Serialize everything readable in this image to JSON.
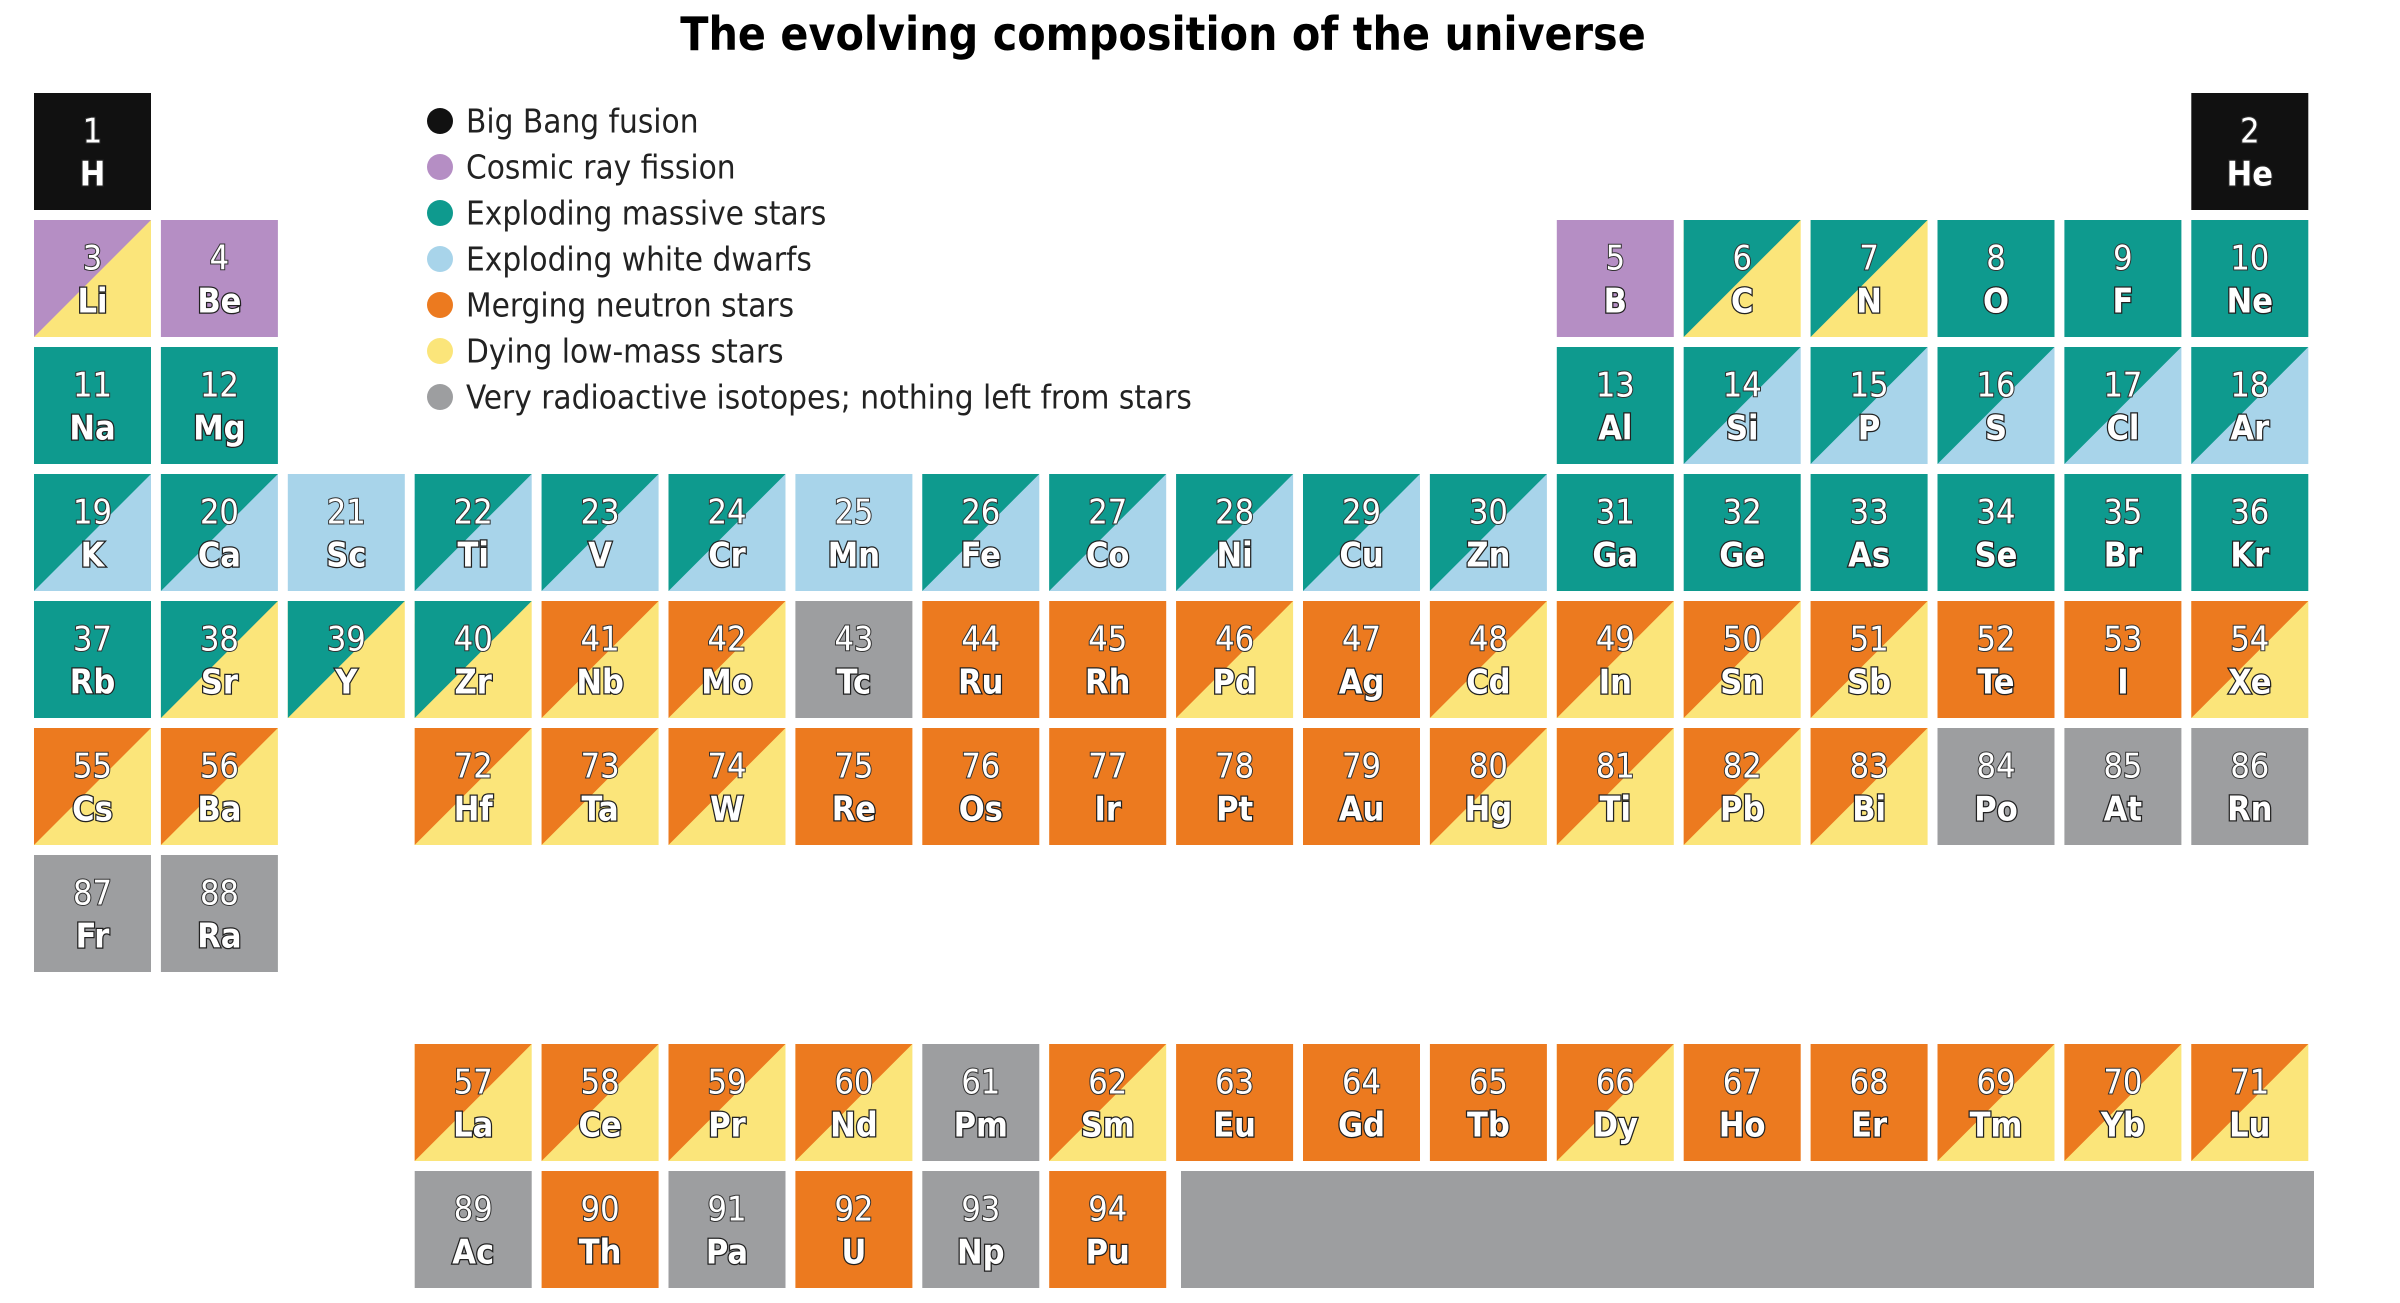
{
  "title": "The evolving composition of the universe",
  "legend": [
    {
      "label": "Big Bang fusion",
      "color": "#111111"
    },
    {
      "label": "Cosmic ray fission",
      "color": "#b58ec4"
    },
    {
      "label": "Exploding massive stars",
      "color": "#0e9a8e"
    },
    {
      "label": "Exploding white dwarfs",
      "color": "#a8d4ea"
    },
    {
      "label": "Merging neutron stars",
      "color": "#ec7a1f"
    },
    {
      "label": "Dying low-mass stars",
      "color": "#fbe57a"
    },
    {
      "label": "Very  radioactive isotopes; nothing left from stars",
      "color": "#9d9ea0"
    }
  ],
  "elements": [
    {
      "number": 1,
      "symbol": "H",
      "colors": [
        "#111111"
      ]
    },
    {
      "number": 2,
      "symbol": "He",
      "colors": [
        "#111111"
      ]
    },
    {
      "number": 3,
      "symbol": "Li",
      "colors": [
        "#b58ec4",
        "#fbe57a"
      ]
    },
    {
      "number": 4,
      "symbol": "Be",
      "colors": [
        "#b58ec4"
      ]
    },
    {
      "number": 5,
      "symbol": "B",
      "colors": [
        "#b58ec4"
      ]
    },
    {
      "number": 6,
      "symbol": "C",
      "colors": [
        "#0e9a8e",
        "#fbe57a"
      ]
    },
    {
      "number": 7,
      "symbol": "N",
      "colors": [
        "#0e9a8e",
        "#fbe57a"
      ]
    },
    {
      "number": 8,
      "symbol": "O",
      "colors": [
        "#0e9a8e"
      ]
    },
    {
      "number": 9,
      "symbol": "F",
      "colors": [
        "#0e9a8e"
      ]
    },
    {
      "number": 10,
      "symbol": "Ne",
      "colors": [
        "#0e9a8e"
      ]
    },
    {
      "number": 11,
      "symbol": "Na",
      "colors": [
        "#0e9a8e"
      ]
    },
    {
      "number": 12,
      "symbol": "Mg",
      "colors": [
        "#0e9a8e"
      ]
    },
    {
      "number": 13,
      "symbol": "Al",
      "colors": [
        "#0e9a8e"
      ]
    },
    {
      "number": 14,
      "symbol": "Si",
      "colors": [
        "#0e9a8e",
        "#a8d4ea"
      ]
    },
    {
      "number": 15,
      "symbol": "P",
      "colors": [
        "#0e9a8e",
        "#a8d4ea"
      ]
    },
    {
      "number": 16,
      "symbol": "S",
      "colors": [
        "#0e9a8e",
        "#a8d4ea"
      ]
    },
    {
      "number": 17,
      "symbol": "Cl",
      "colors": [
        "#0e9a8e",
        "#a8d4ea"
      ]
    },
    {
      "number": 18,
      "symbol": "Ar",
      "colors": [
        "#0e9a8e",
        "#a8d4ea"
      ]
    },
    {
      "number": 19,
      "symbol": "K",
      "colors": [
        "#0e9a8e",
        "#a8d4ea"
      ]
    },
    {
      "number": 20,
      "symbol": "Ca",
      "colors": [
        "#0e9a8e",
        "#a8d4ea"
      ]
    },
    {
      "number": 21,
      "symbol": "Sc",
      "colors": [
        "#a8d4ea"
      ]
    },
    {
      "number": 22,
      "symbol": "Ti",
      "colors": [
        "#0e9a8e",
        "#a8d4ea"
      ]
    },
    {
      "number": 23,
      "symbol": "V",
      "colors": [
        "#0e9a8e",
        "#a8d4ea"
      ]
    },
    {
      "number": 24,
      "symbol": "Cr",
      "colors": [
        "#0e9a8e",
        "#a8d4ea"
      ]
    },
    {
      "number": 25,
      "symbol": "Mn",
      "colors": [
        "#a8d4ea"
      ]
    },
    {
      "number": 26,
      "symbol": "Fe",
      "colors": [
        "#0e9a8e",
        "#a8d4ea"
      ]
    },
    {
      "number": 27,
      "symbol": "Co",
      "colors": [
        "#0e9a8e",
        "#a8d4ea"
      ]
    },
    {
      "number": 28,
      "symbol": "Ni",
      "colors": [
        "#0e9a8e",
        "#a8d4ea"
      ]
    },
    {
      "number": 29,
      "symbol": "Cu",
      "colors": [
        "#0e9a8e",
        "#a8d4ea"
      ]
    },
    {
      "number": 30,
      "symbol": "Zn",
      "colors": [
        "#0e9a8e",
        "#a8d4ea"
      ]
    },
    {
      "number": 31,
      "symbol": "Ga",
      "colors": [
        "#0e9a8e"
      ]
    },
    {
      "number": 32,
      "symbol": "Ge",
      "colors": [
        "#0e9a8e"
      ]
    },
    {
      "number": 33,
      "symbol": "As",
      "colors": [
        "#0e9a8e"
      ]
    },
    {
      "number": 34,
      "symbol": "Se",
      "colors": [
        "#0e9a8e"
      ]
    },
    {
      "number": 35,
      "symbol": "Br",
      "colors": [
        "#0e9a8e"
      ]
    },
    {
      "number": 36,
      "symbol": "Kr",
      "colors": [
        "#0e9a8e"
      ]
    },
    {
      "number": 37,
      "symbol": "Rb",
      "colors": [
        "#0e9a8e"
      ]
    },
    {
      "number": 38,
      "symbol": "Sr",
      "colors": [
        "#0e9a8e",
        "#fbe57a"
      ]
    },
    {
      "number": 39,
      "symbol": "Y",
      "colors": [
        "#0e9a8e",
        "#fbe57a"
      ]
    },
    {
      "number": 40,
      "symbol": "Zr",
      "colors": [
        "#0e9a8e",
        "#fbe57a"
      ]
    },
    {
      "number": 41,
      "symbol": "Nb",
      "colors": [
        "#ec7a1f",
        "#fbe57a"
      ]
    },
    {
      "number": 42,
      "symbol": "Mo",
      "colors": [
        "#ec7a1f",
        "#fbe57a"
      ]
    },
    {
      "number": 43,
      "symbol": "Tc",
      "colors": [
        "#9d9ea0"
      ]
    },
    {
      "number": 44,
      "symbol": "Ru",
      "colors": [
        "#ec7a1f"
      ]
    },
    {
      "number": 45,
      "symbol": "Rh",
      "colors": [
        "#ec7a1f"
      ]
    },
    {
      "number": 46,
      "symbol": "Pd",
      "colors": [
        "#ec7a1f",
        "#fbe57a"
      ]
    },
    {
      "number": 47,
      "symbol": "Ag",
      "colors": [
        "#ec7a1f"
      ]
    },
    {
      "number": 48,
      "symbol": "Cd",
      "colors": [
        "#ec7a1f",
        "#fbe57a"
      ]
    },
    {
      "number": 49,
      "symbol": "In",
      "colors": [
        "#ec7a1f",
        "#fbe57a"
      ]
    },
    {
      "number": 50,
      "symbol": "Sn",
      "colors": [
        "#ec7a1f",
        "#fbe57a"
      ]
    },
    {
      "number": 51,
      "symbol": "Sb",
      "colors": [
        "#ec7a1f",
        "#fbe57a"
      ]
    },
    {
      "number": 52,
      "symbol": "Te",
      "colors": [
        "#ec7a1f"
      ]
    },
    {
      "number": 53,
      "symbol": "I",
      "colors": [
        "#ec7a1f"
      ]
    },
    {
      "number": 54,
      "symbol": "Xe",
      "colors": [
        "#ec7a1f",
        "#fbe57a"
      ]
    },
    {
      "number": 55,
      "symbol": "Cs",
      "colors": [
        "#ec7a1f",
        "#fbe57a"
      ]
    },
    {
      "number": 56,
      "symbol": "Ba",
      "colors": [
        "#ec7a1f",
        "#fbe57a"
      ]
    },
    {
      "number": 72,
      "symbol": "Hf",
      "colors": [
        "#ec7a1f",
        "#fbe57a"
      ]
    },
    {
      "number": 73,
      "symbol": "Ta",
      "colors": [
        "#ec7a1f",
        "#fbe57a"
      ]
    },
    {
      "number": 74,
      "symbol": "W",
      "colors": [
        "#ec7a1f",
        "#fbe57a"
      ]
    },
    {
      "number": 75,
      "symbol": "Re",
      "colors": [
        "#ec7a1f"
      ]
    },
    {
      "number": 76,
      "symbol": "Os",
      "colors": [
        "#ec7a1f"
      ]
    },
    {
      "number": 77,
      "symbol": "Ir",
      "colors": [
        "#ec7a1f"
      ]
    },
    {
      "number": 78,
      "symbol": "Pt",
      "colors": [
        "#ec7a1f"
      ]
    },
    {
      "number": 79,
      "symbol": "Au",
      "colors": [
        "#ec7a1f"
      ]
    },
    {
      "number": 80,
      "symbol": "Hg",
      "colors": [
        "#ec7a1f",
        "#fbe57a"
      ]
    },
    {
      "number": 81,
      "symbol": "Ti",
      "colors": [
        "#ec7a1f",
        "#fbe57a"
      ]
    },
    {
      "number": 82,
      "symbol": "Pb",
      "colors": [
        "#ec7a1f",
        "#fbe57a"
      ]
    },
    {
      "number": 83,
      "symbol": "Bi",
      "colors": [
        "#ec7a1f",
        "#fbe57a"
      ]
    },
    {
      "number": 84,
      "symbol": "Po",
      "colors": [
        "#9d9ea0"
      ]
    },
    {
      "number": 85,
      "symbol": "At",
      "colors": [
        "#9d9ea0"
      ]
    },
    {
      "number": 86,
      "symbol": "Rn",
      "colors": [
        "#9d9ea0"
      ]
    },
    {
      "number": 87,
      "symbol": "Fr",
      "colors": [
        "#9d9ea0"
      ]
    },
    {
      "number": 88,
      "symbol": "Ra",
      "colors": [
        "#9d9ea0"
      ]
    },
    {
      "number": 57,
      "symbol": "La",
      "colors": [
        "#ec7a1f",
        "#fbe57a"
      ]
    },
    {
      "number": 58,
      "symbol": "Ce",
      "colors": [
        "#ec7a1f",
        "#fbe57a"
      ]
    },
    {
      "number": 59,
      "symbol": "Pr",
      "colors": [
        "#ec7a1f",
        "#fbe57a"
      ]
    },
    {
      "number": 60,
      "symbol": "Nd",
      "colors": [
        "#ec7a1f",
        "#fbe57a"
      ]
    },
    {
      "number": 61,
      "symbol": "Pm",
      "colors": [
        "#9d9ea0"
      ]
    },
    {
      "number": 62,
      "symbol": "Sm",
      "colors": [
        "#ec7a1f",
        "#fbe57a"
      ]
    },
    {
      "number": 63,
      "symbol": "Eu",
      "colors": [
        "#ec7a1f"
      ]
    },
    {
      "number": 64,
      "symbol": "Gd",
      "colors": [
        "#ec7a1f"
      ]
    },
    {
      "number": 65,
      "symbol": "Tb",
      "colors": [
        "#ec7a1f"
      ]
    },
    {
      "number": 66,
      "symbol": "Dy",
      "colors": [
        "#ec7a1f",
        "#fbe57a"
      ]
    },
    {
      "number": 67,
      "symbol": "Ho",
      "colors": [
        "#ec7a1f"
      ]
    },
    {
      "number": 68,
      "symbol": "Er",
      "colors": [
        "#ec7a1f"
      ]
    },
    {
      "number": 69,
      "symbol": "Tm",
      "colors": [
        "#ec7a1f",
        "#fbe57a"
      ]
    },
    {
      "number": 70,
      "symbol": "Yb",
      "colors": [
        "#ec7a1f",
        "#fbe57a"
      ]
    },
    {
      "number": 71,
      "symbol": "Lu",
      "colors": [
        "#ec7a1f",
        "#fbe57a"
      ]
    },
    {
      "number": 89,
      "symbol": "Ac",
      "colors": [
        "#9d9ea0"
      ]
    },
    {
      "number": 90,
      "symbol": "Th",
      "colors": [
        "#ec7a1f"
      ]
    },
    {
      "number": 91,
      "symbol": "Pa",
      "colors": [
        "#9d9ea0"
      ]
    },
    {
      "number": 92,
      "symbol": "U",
      "colors": [
        "#ec7a1f"
      ]
    },
    {
      "number": 93,
      "symbol": "Np",
      "colors": [
        "#9d9ea0"
      ]
    },
    {
      "number": 94,
      "symbol": "Pu",
      "colors": [
        "#ec7a1f"
      ]
    }
  ]
}
